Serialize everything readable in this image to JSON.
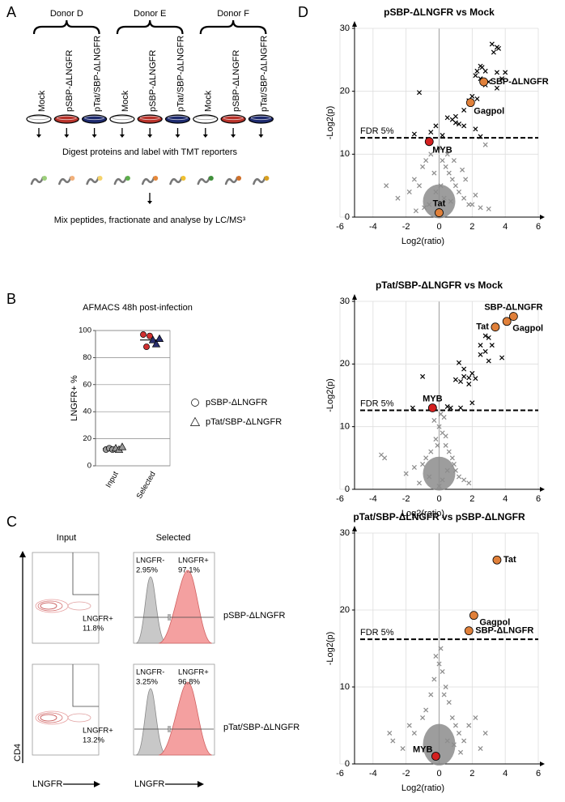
{
  "panel_labels": [
    "A",
    "B",
    "C",
    "D"
  ],
  "panel_a": {
    "donors": [
      "Donor D",
      "Donor E",
      "Donor F"
    ],
    "lanes": [
      {
        "label": "Mock",
        "color": "#ffffff"
      },
      {
        "label": "pSBP-ΔLNGFR",
        "color": "#b8322a"
      },
      {
        "label": "pTat/SBP-ΔLNGFR",
        "color": "#1d2a6e"
      },
      {
        "label": "Mock",
        "color": "#ffffff"
      },
      {
        "label": "pSBP-ΔLNGFR",
        "color": "#b8322a"
      },
      {
        "label": "pTat/SBP-ΔLNGFR",
        "color": "#1d2a6e"
      },
      {
        "label": "Mock",
        "color": "#ffffff"
      },
      {
        "label": "pSBP-ΔLNGFR",
        "color": "#b8322a"
      },
      {
        "label": "pTat/SBP-ΔLNGFR",
        "color": "#1d2a6e"
      }
    ],
    "step_1": "Digest proteins and label with TMT reporters",
    "step_2": "Mix peptides, fractionate and analyse by LC/MS³"
  },
  "panel_c": {
    "column_titles": [
      "Input",
      "Selected"
    ],
    "x_label": "LNGFR",
    "y_label": "CD4",
    "rows": [
      {
        "sample": "pSBP-ΔLNGFR",
        "input_gate": "LNGFR+",
        "input_pct": "11.8%",
        "neg_gate": "LNGFR-",
        "neg_pct": "2.95%",
        "pos_gate": "LNGFR+",
        "pos_pct": "97.1%"
      },
      {
        "sample": "pTat/SBP-ΔLNGFR",
        "input_gate": "LNGFR+",
        "input_pct": "13.2%",
        "neg_gate": "LNGFR-",
        "neg_pct": "3.25%",
        "pos_gate": "LNGFR+",
        "pos_pct": "96.8%"
      }
    ]
  },
  "chart_data": [
    {
      "type": "dot",
      "title": "AFMACS 48h post-infection",
      "y_label": "LNGFR+ %",
      "categories": [
        "Input",
        "Selected"
      ],
      "ylim": [
        0,
        100
      ],
      "yticks": [
        0,
        20,
        40,
        60,
        80,
        100
      ],
      "grid": true,
      "series": [
        {
          "name": "pSBP-ΔLNGFR",
          "marker": "circle",
          "colors": [
            "#999999",
            "#d03030"
          ],
          "values": [
            [
              12,
              13,
              12
            ],
            [
              97,
              88,
              96
            ]
          ]
        },
        {
          "name": "pTat/SBP-ΔLNGFR",
          "marker": "triangle",
          "colors": [
            "#999999",
            "#2a2f6e"
          ],
          "values": [
            [
              13,
              12,
              14
            ],
            [
              93,
              90,
              94
            ]
          ]
        }
      ]
    },
    {
      "type": "volcano",
      "title": "pSBP-ΔLNGFR vs Mock",
      "x_label": "Log2(ratio)",
      "y_label": "-Log2(p)",
      "xlim": [
        -6,
        6
      ],
      "xticks": [
        -6,
        -4,
        -2,
        0,
        2,
        4,
        6
      ],
      "ylim": [
        0,
        30
      ],
      "yticks": [
        0,
        10,
        20,
        30
      ],
      "grid": true,
      "threshold": {
        "value": 12.6,
        "label": "FDR 5%"
      },
      "series": [
        {
          "marker": "cross",
          "color": "#000000",
          "x": [
            3.2,
            3.5,
            3.3,
            3.6,
            2.5,
            2.3,
            2.6,
            2.8,
            3.5,
            4.0,
            2.2,
            2.5,
            3.0,
            3.8,
            2.8,
            3.5,
            -1.2,
            2.0,
            1.8,
            2.3,
            1.5,
            1.0,
            0.8,
            1.0,
            1.2,
            0.5,
            1.5,
            2.2,
            -0.2,
            -1.5,
            0.2,
            2.5,
            -0.5
          ],
          "values": [
            27.5,
            27.0,
            26.2,
            26.8,
            24.0,
            23.2,
            23.8,
            23.2,
            23.0,
            23.0,
            22.5,
            22.0,
            21.5,
            22.0,
            21.0,
            20.5,
            19.8,
            19.2,
            18.5,
            18.8,
            17.0,
            16.0,
            15.5,
            15.0,
            14.8,
            15.8,
            14.5,
            14.0,
            14.5,
            13.2,
            13.0,
            12.8,
            13.5
          ]
        },
        {
          "marker": "cross",
          "color": "#8c8c8c",
          "x": [
            -2.5,
            -1.8,
            -1.5,
            -1.2,
            -1.0,
            -0.8,
            -0.5,
            -0.3,
            0.0,
            0.2,
            0.4,
            0.6,
            0.8,
            1.0,
            1.2,
            1.5,
            1.8,
            2.0,
            2.5,
            3.0,
            -0.6,
            0.3,
            0.9,
            -1.4,
            1.6,
            0.1,
            -0.2,
            0.5,
            2.8,
            -3.2,
            2.2,
            1.4,
            -0.9,
            0.7
          ],
          "values": [
            3.0,
            4.0,
            6.0,
            5.0,
            8.0,
            9.0,
            10.0,
            7.0,
            11.0,
            9.0,
            8.0,
            7.0,
            6.0,
            5.0,
            4.0,
            3.0,
            2.0,
            2.0,
            1.5,
            1.3,
            2.0,
            3.0,
            9.0,
            1.0,
            6.0,
            5.0,
            4.0,
            10.0,
            11.5,
            5.0,
            3.5,
            7.5,
            1.5,
            2.5
          ]
        }
      ],
      "highlights": [
        {
          "label": "SBP-ΔLNGFR",
          "x": 2.7,
          "y": 21.5,
          "color": "#e0803a",
          "position": "right"
        },
        {
          "label": "Gagpol",
          "x": 1.9,
          "y": 18.2,
          "color": "#e0803a",
          "position": "below"
        },
        {
          "label": "MYB",
          "x": -0.6,
          "y": 12.0,
          "color": "#d42020",
          "position": "below"
        },
        {
          "label": "Tat",
          "x": 0.0,
          "y": 0.7,
          "color": "#e0803a",
          "position": "above"
        }
      ]
    },
    {
      "type": "volcano",
      "title": "pTat/SBP-ΔLNGFR vs Mock",
      "x_label": "Log2(ratio)",
      "y_label": "-Log2(p)",
      "xlim": [
        -6,
        6
      ],
      "xticks": [
        -6,
        -4,
        -2,
        0,
        2,
        4,
        6
      ],
      "ylim": [
        0,
        30
      ],
      "yticks": [
        0,
        10,
        20,
        30
      ],
      "grid": true,
      "threshold": {
        "value": 12.6,
        "label": "FDR 5%"
      },
      "series": [
        {
          "marker": "cross",
          "color": "#000000",
          "x": [
            2.8,
            3.0,
            3.2,
            2.5,
            2.8,
            3.8,
            2.5,
            3.0,
            1.2,
            1.5,
            2.0,
            1.5,
            1.8,
            1.0,
            2.2,
            1.3,
            -1.0,
            1.8,
            2.0,
            0.5,
            0.7,
            -1.6,
            1.3
          ],
          "values": [
            24.5,
            24.2,
            23.0,
            23.0,
            22.0,
            21.0,
            21.5,
            20.5,
            20.2,
            19.2,
            18.5,
            18.0,
            17.8,
            17.5,
            17.7,
            17.2,
            18.0,
            16.8,
            13.8,
            13.2,
            13.0,
            13.0,
            13.0
          ]
        },
        {
          "marker": "cross",
          "color": "#8c8c8c",
          "x": [
            -3.5,
            -3.3,
            -2.0,
            -1.5,
            -1.0,
            -0.8,
            -0.5,
            -0.2,
            0.0,
            0.2,
            0.4,
            0.6,
            0.8,
            1.0,
            1.2,
            1.5,
            -0.3,
            0.1,
            0.3,
            -0.6,
            0.5,
            0.9,
            1.8,
            -1.2,
            0.0,
            0.2,
            -0.1,
            0.4
          ],
          "values": [
            5.5,
            5.0,
            2.5,
            3.5,
            4.0,
            5.0,
            6.0,
            8.0,
            10.0,
            9.0,
            7.0,
            6.0,
            5.0,
            3.0,
            2.0,
            1.5,
            11.0,
            12.0,
            11.5,
            2.0,
            3.0,
            4.0,
            1.0,
            1.0,
            0.5,
            1.5,
            7.0,
            8.5
          ]
        }
      ],
      "highlights": [
        {
          "label": "SBP-ΔLNGFR",
          "x": 4.5,
          "y": 27.6,
          "color": "#e0803a",
          "position": "above"
        },
        {
          "label": "Gagpol",
          "x": 4.1,
          "y": 26.8,
          "color": "#e0803a",
          "position": "below-right"
        },
        {
          "label": "Tat",
          "x": 3.4,
          "y": 25.9,
          "color": "#e0803a",
          "position": "left"
        },
        {
          "label": "MYB",
          "x": -0.4,
          "y": 13.0,
          "color": "#d42020",
          "position": "above"
        }
      ]
    },
    {
      "type": "volcano",
      "title": "pTat/SBP-ΔLNGFR vs pSBP-ΔLNGFR",
      "x_label": "Log2(ratio)",
      "y_label": "-Log2(p)",
      "xlim": [
        -6,
        6
      ],
      "xticks": [
        -6,
        -4,
        -2,
        0,
        2,
        4,
        6
      ],
      "ylim": [
        0,
        30
      ],
      "yticks": [
        0,
        10,
        20,
        30
      ],
      "grid": true,
      "threshold": {
        "value": 16.2,
        "label": "FDR 5%"
      },
      "series": [
        {
          "marker": "cross",
          "color": "#8c8c8c",
          "x": [
            -3.0,
            -2.8,
            -2.2,
            -1.8,
            -1.5,
            -1.0,
            -0.8,
            -0.5,
            -0.3,
            0.0,
            0.2,
            0.4,
            0.6,
            0.8,
            1.0,
            1.2,
            1.5,
            1.8,
            2.2,
            2.8,
            -0.2,
            0.1,
            0.3,
            -0.6,
            0.5,
            0.9,
            1.3,
            2.5
          ],
          "values": [
            4.0,
            3.0,
            2.0,
            5.0,
            4.0,
            6.0,
            7.0,
            9.0,
            11.0,
            13.0,
            12.0,
            10.0,
            8.0,
            6.0,
            5.0,
            4.0,
            3.0,
            5.0,
            6.0,
            4.0,
            14.0,
            15.0,
            9.0,
            2.0,
            3.0,
            2.5,
            1.5,
            2.0
          ]
        }
      ],
      "highlights": [
        {
          "label": "Tat",
          "x": 3.5,
          "y": 26.5,
          "color": "#e0803a",
          "position": "right"
        },
        {
          "label": "Gagpol",
          "x": 2.1,
          "y": 19.3,
          "color": "#e0803a",
          "position": "below-right"
        },
        {
          "label": "SBP-ΔLNGFR",
          "x": 1.8,
          "y": 17.3,
          "color": "#e0803a",
          "position": "right"
        },
        {
          "label": "MYB",
          "x": -0.2,
          "y": 1.0,
          "color": "#d42020",
          "position": "above-left"
        }
      ]
    }
  ]
}
